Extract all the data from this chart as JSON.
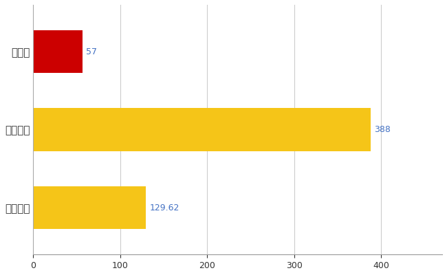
{
  "categories": [
    "全国平均",
    "全国最大",
    "福井県"
  ],
  "values": [
    129.62,
    388,
    57
  ],
  "bar_colors": [
    "#F5C518",
    "#F5C518",
    "#CC0000"
  ],
  "value_labels": [
    "129.62",
    "388",
    "57"
  ],
  "label_color": "#4472C4",
  "background_color": "#FFFFFF",
  "grid_color": "#CCCCCC",
  "xlim": [
    0,
    470
  ],
  "xticks": [
    0,
    100,
    200,
    300,
    400
  ],
  "bar_height": 0.55,
  "figsize": [
    6.5,
    4.0
  ],
  "dpi": 100
}
